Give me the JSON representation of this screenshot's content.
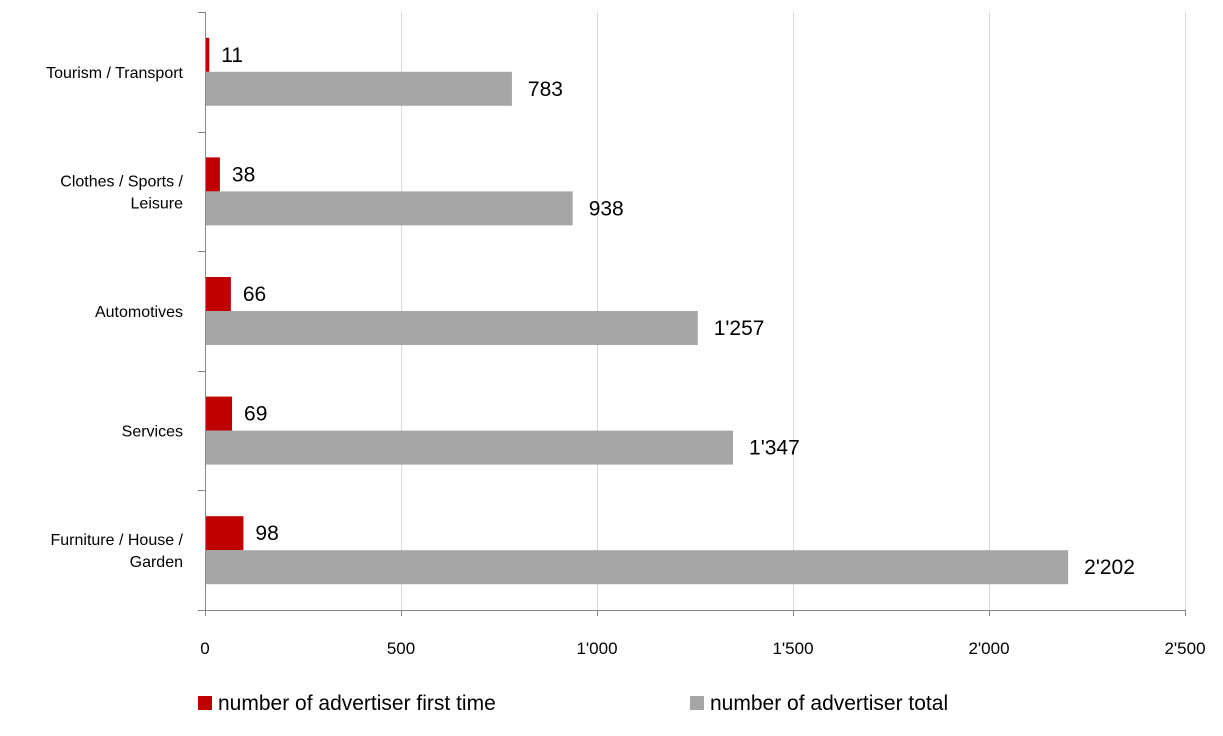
{
  "chart_data": {
    "type": "bar",
    "orientation": "horizontal",
    "title": "",
    "xlabel": "",
    "ylabel": "",
    "xlim": [
      0,
      2500
    ],
    "x_ticks": [
      0,
      500,
      1000,
      1500,
      2000,
      2500
    ],
    "x_tick_labels": [
      "0",
      "500",
      "1'000",
      "1'500",
      "2'000",
      "2'500"
    ],
    "grid": true,
    "legend_position": "bottom",
    "categories": [
      [
        "Tourism / Transport"
      ],
      [
        "Clothes / Sports /",
        "Leisure"
      ],
      [
        "Automotives"
      ],
      [
        "Services"
      ],
      [
        "Furniture / House /",
        "Garden"
      ]
    ],
    "series": [
      {
        "name": "number of advertiser first time",
        "color": "#c00000",
        "values": [
          11,
          38,
          66,
          69,
          98
        ],
        "labels": [
          "11",
          "38",
          "66",
          "69",
          "98"
        ]
      },
      {
        "name": "number of advertiser total",
        "color": "#a6a6a6",
        "values": [
          783,
          938,
          1257,
          1347,
          2202
        ],
        "labels": [
          "783",
          "938",
          "1'257",
          "1'347",
          "2'202"
        ]
      }
    ]
  }
}
